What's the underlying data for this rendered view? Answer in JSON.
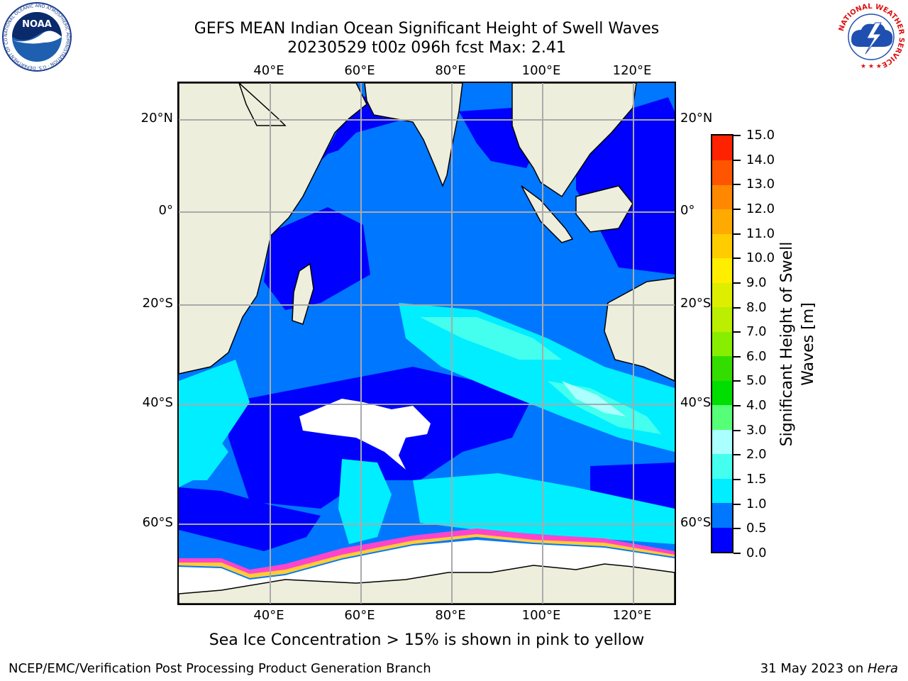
{
  "header": {
    "title_line1": "GEFS MEAN Indian Ocean Significant Height of Swell Waves",
    "title_line2": "20230529 t00z 096h fcst   Max: 2.41"
  },
  "axes": {
    "lon_labels": [
      "40°E",
      "60°E",
      "80°E",
      "100°E",
      "120°E"
    ],
    "lat_labels": [
      "20°N",
      "0°",
      "20°S",
      "40°S",
      "60°S"
    ]
  },
  "colorbar": {
    "title_line1": "Significant Height of Swell",
    "title_line2": "Waves [m]",
    "tick_labels": [
      "0.0",
      "0.5",
      "1.0",
      "1.5",
      "2.0",
      "3.0",
      "4.0",
      "5.0",
      "6.0",
      "7.0",
      "8.0",
      "9.0",
      "10.0",
      "11.0",
      "12.0",
      "13.0",
      "14.0",
      "15.0"
    ],
    "colors": [
      "#0000ff",
      "#0077ff",
      "#00eeff",
      "#44ffee",
      "#aaffff",
      "#55ff77",
      "#00dd00",
      "#33dd00",
      "#88ee00",
      "#bbee00",
      "#ddee00",
      "#ffee00",
      "#ffcc00",
      "#ffaa00",
      "#ff8800",
      "#ff5500",
      "#ff2200"
    ]
  },
  "map_colors": {
    "land": "#eeeedd",
    "ocean_deep": "#0000ff",
    "ocean_mid": "#0077ff",
    "ocean_light": "#00eeff",
    "ocean_lighter": "#44ffee",
    "ocean_palest": "#aaffff",
    "ice": "#ffffff",
    "ice_edge_pink": "#ff44cc",
    "ice_edge_yellow": "#ffcc33",
    "grid": "#aaaaaa"
  },
  "caption": "Sea Ice Concentration > 15% is shown in pink to yellow",
  "footer": {
    "left": "NCEP/EMC/Verification Post Processing Product Generation Branch",
    "right_date": "31 May 2023 on ",
    "right_host": "Hera"
  },
  "logos": {
    "noaa_text": "NOAA",
    "noaa_ring": "NATIONAL OCEANIC AND ATMOSPHERIC ADMINISTRATION · U.S. DEPARTMENT OF COMMERCE",
    "nws_ring": "NATIONAL WEATHER SERVICE"
  }
}
